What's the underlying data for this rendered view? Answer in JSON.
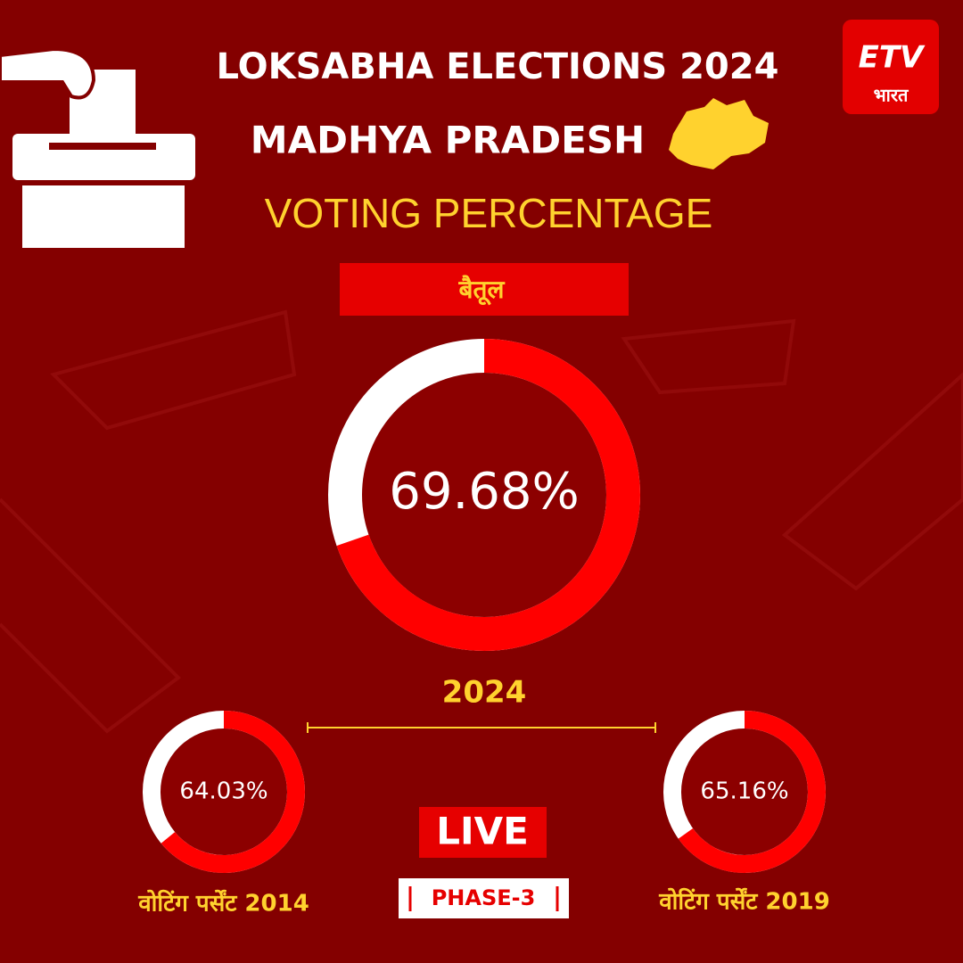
{
  "header": {
    "title": "LOKSABHA ELECTIONS 2024",
    "subtitle": "MADHYA PRADESH",
    "heading": "VOTING PERCENTAGE",
    "constituency": "बैतूल"
  },
  "logo": {
    "brand": "ETV",
    "script": "भारत"
  },
  "chart_data": [
    {
      "type": "donut",
      "title": "2024",
      "values": [
        69.68
      ],
      "value_labels": [
        "69.68%"
      ],
      "color": "#ff0000",
      "rest_color": "#ffffff"
    },
    {
      "type": "donut",
      "title": "वोटिंग पर्सेंट 2014",
      "values": [
        64.03
      ],
      "value_labels": [
        "64.03%"
      ],
      "color": "#ff0000",
      "rest_color": "#ffffff"
    },
    {
      "type": "donut",
      "title": "वोटिंग पर्सेंट 2019",
      "values": [
        65.16
      ],
      "value_labels": [
        "65.16%"
      ],
      "color": "#ff0000",
      "rest_color": "#ffffff"
    }
  ],
  "footer": {
    "live": "LIVE",
    "phase": "PHASE-3"
  }
}
